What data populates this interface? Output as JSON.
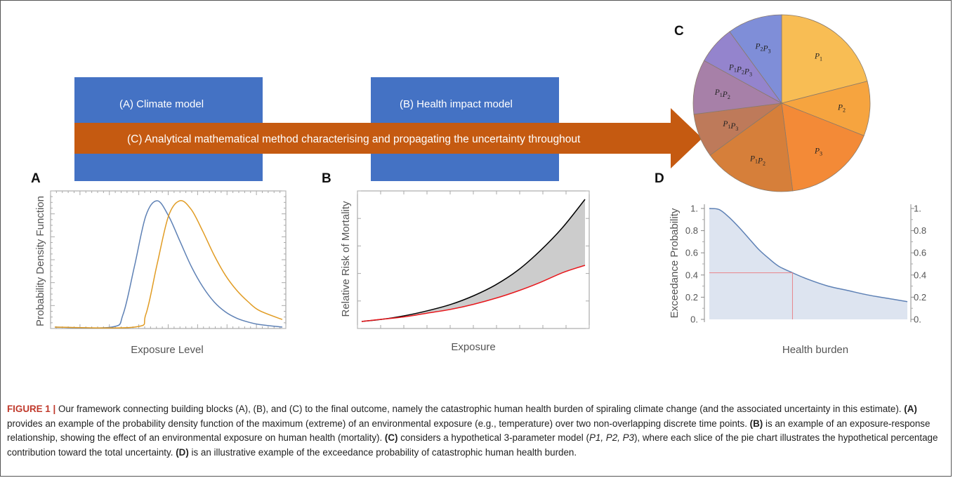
{
  "colors": {
    "box_blue": "#4472C4",
    "arrow_orange": "#C55A11",
    "curve_blue": "#5E81B5",
    "curve_orange": "#E19C24",
    "risk_black": "#000000",
    "risk_red": "#E8171C",
    "band_gray": "#CCCCCC",
    "exceed_blue": "#5E81B5",
    "exceed_fill": "#DDE4F0",
    "marker_red": "#E8858A",
    "caption_red": "#C0392B"
  },
  "diagram": {
    "climate_box": "(A) Climate model",
    "health_box": "(B) Health impact model",
    "arrow_text": "(C) Analytical mathematical method characterising and propagating the uncertainty throughout"
  },
  "panels": {
    "A": {
      "letter": "A",
      "xlabel": "Exposure Level",
      "ylabel": "Probability Density Function"
    },
    "B": {
      "letter": "B",
      "xlabel": "Exposure",
      "ylabel": "Relative Risk of Mortality"
    },
    "C": {
      "letter": "C"
    },
    "D": {
      "letter": "D",
      "xlabel": "Health burden",
      "ylabel": "Exceedance Probability"
    }
  },
  "chart_data": [
    {
      "panel": "A",
      "type": "line",
      "xlabel": "Exposure Level",
      "ylabel": "Probability Density Function",
      "series": [
        {
          "color": "#5E81B5",
          "values": [
            {
              "x": 0,
              "y": 0.0
            },
            {
              "x": 2.5,
              "y": 0.0
            },
            {
              "x": 3.0,
              "y": 0.1
            },
            {
              "x": 3.5,
              "y": 0.48
            },
            {
              "x": 4.0,
              "y": 0.88
            },
            {
              "x": 4.5,
              "y": 1.0
            },
            {
              "x": 5.0,
              "y": 0.88
            },
            {
              "x": 5.5,
              "y": 0.68
            },
            {
              "x": 6.0,
              "y": 0.48
            },
            {
              "x": 6.5,
              "y": 0.32
            },
            {
              "x": 7.0,
              "y": 0.2
            },
            {
              "x": 7.5,
              "y": 0.12
            },
            {
              "x": 8.0,
              "y": 0.07
            },
            {
              "x": 8.5,
              "y": 0.04
            },
            {
              "x": 9.0,
              "y": 0.02
            },
            {
              "x": 10.0,
              "y": 0.0
            }
          ]
        },
        {
          "color": "#E19C24",
          "values": [
            {
              "x": 0,
              "y": 0.0
            },
            {
              "x": 3.5,
              "y": 0.0
            },
            {
              "x": 4.0,
              "y": 0.1
            },
            {
              "x": 4.5,
              "y": 0.5
            },
            {
              "x": 5.0,
              "y": 0.88
            },
            {
              "x": 5.5,
              "y": 1.0
            },
            {
              "x": 6.0,
              "y": 0.93
            },
            {
              "x": 6.5,
              "y": 0.76
            },
            {
              "x": 7.0,
              "y": 0.57
            },
            {
              "x": 7.5,
              "y": 0.41
            },
            {
              "x": 8.0,
              "y": 0.29
            },
            {
              "x": 8.5,
              "y": 0.2
            },
            {
              "x": 9.0,
              "y": 0.13
            },
            {
              "x": 10.0,
              "y": 0.06
            }
          ]
        }
      ]
    },
    {
      "panel": "B",
      "type": "area",
      "xlabel": "Exposure",
      "ylabel": "Relative Risk of Mortality",
      "series": [
        {
          "color": "#000000",
          "values": [
            {
              "x": 0,
              "y": 0.0
            },
            {
              "x": 1,
              "y": 0.02
            },
            {
              "x": 2,
              "y": 0.05
            },
            {
              "x": 3,
              "y": 0.09
            },
            {
              "x": 4,
              "y": 0.14
            },
            {
              "x": 5,
              "y": 0.21
            },
            {
              "x": 6,
              "y": 0.3
            },
            {
              "x": 7,
              "y": 0.42
            },
            {
              "x": 8,
              "y": 0.58
            },
            {
              "x": 9,
              "y": 0.77
            },
            {
              "x": 10,
              "y": 1.0
            }
          ]
        },
        {
          "color": "#E8171C",
          "values": [
            {
              "x": 0,
              "y": 0.0
            },
            {
              "x": 1,
              "y": 0.02
            },
            {
              "x": 2,
              "y": 0.04
            },
            {
              "x": 3,
              "y": 0.07
            },
            {
              "x": 4,
              "y": 0.1
            },
            {
              "x": 5,
              "y": 0.14
            },
            {
              "x": 6,
              "y": 0.19
            },
            {
              "x": 7,
              "y": 0.25
            },
            {
              "x": 8,
              "y": 0.32
            },
            {
              "x": 9,
              "y": 0.4
            },
            {
              "x": 10,
              "y": 0.46
            }
          ]
        }
      ]
    },
    {
      "panel": "C",
      "type": "pie",
      "slices": [
        {
          "label": "P1",
          "sub": "1",
          "value": 21,
          "color": "#F8BD54"
        },
        {
          "label": "P2",
          "sub": "2",
          "value": 10,
          "color": "#F6A43F"
        },
        {
          "label": "P3",
          "sub": "3",
          "value": 17,
          "color": "#F38A37"
        },
        {
          "label": "P1P2",
          "sub": "1,2",
          "value": 17,
          "color": "#D67F3A"
        },
        {
          "label": "P1P3",
          "sub": "1,3",
          "value": 8,
          "color": "#BE7A5A"
        },
        {
          "label": "P1P2",
          "sub": "1,2",
          "value": 10,
          "color": "#A780A8"
        },
        {
          "label": "P1P2P3",
          "sub": "1,2,3",
          "value": 7,
          "color": "#9484CD"
        },
        {
          "label": "P2P3",
          "sub": "2,3",
          "value": 10,
          "color": "#7F8ED8"
        }
      ]
    },
    {
      "panel": "D",
      "type": "area",
      "xlabel": "Health burden",
      "ylabel": "Exceedance Probability",
      "yticks": [
        "0.",
        "0.2",
        "0.4",
        "0.6",
        "0.8",
        "1."
      ],
      "ylim": [
        0,
        1
      ],
      "marker": {
        "x": 0.42,
        "y": 0.42
      },
      "series": [
        {
          "color": "#5E81B5",
          "values": [
            {
              "x": 0.0,
              "y": 1.0
            },
            {
              "x": 0.05,
              "y": 0.99
            },
            {
              "x": 0.1,
              "y": 0.92
            },
            {
              "x": 0.15,
              "y": 0.83
            },
            {
              "x": 0.2,
              "y": 0.73
            },
            {
              "x": 0.25,
              "y": 0.63
            },
            {
              "x": 0.3,
              "y": 0.55
            },
            {
              "x": 0.35,
              "y": 0.48
            },
            {
              "x": 0.42,
              "y": 0.42
            },
            {
              "x": 0.5,
              "y": 0.36
            },
            {
              "x": 0.6,
              "y": 0.3
            },
            {
              "x": 0.7,
              "y": 0.26
            },
            {
              "x": 0.8,
              "y": 0.22
            },
            {
              "x": 0.9,
              "y": 0.19
            },
            {
              "x": 1.0,
              "y": 0.16
            }
          ]
        }
      ]
    }
  ],
  "caption": {
    "fig_id": "FIGURE 1 |",
    "t1": " Our framework connecting building blocks (A), (B), and (C) to the final outcome, namely the catastrophic human health burden of spiraling climate change (and the associated uncertainty in this estimate). ",
    "a": "(A)",
    "t2": " provides an example of the probability density function of the maximum (extreme) of an environmental exposure (e.g., temperature) over two non-overlapping discrete time points. ",
    "b": "(B)",
    "t3": " is an example of an exposure-response relationship, showing the effect of an environmental exposure on human health (mortality). ",
    "c": "(C)",
    "t4": " considers a hypothetical 3-parameter model (",
    "params": "P1, P2, P3",
    "t5": "), where each slice of the pie chart illustrates the hypothetical percentage contribution toward the total uncertainty. ",
    "d": "(D)",
    "t6": " is an illustrative example of the exceedance probability of catastrophic human health burden."
  }
}
